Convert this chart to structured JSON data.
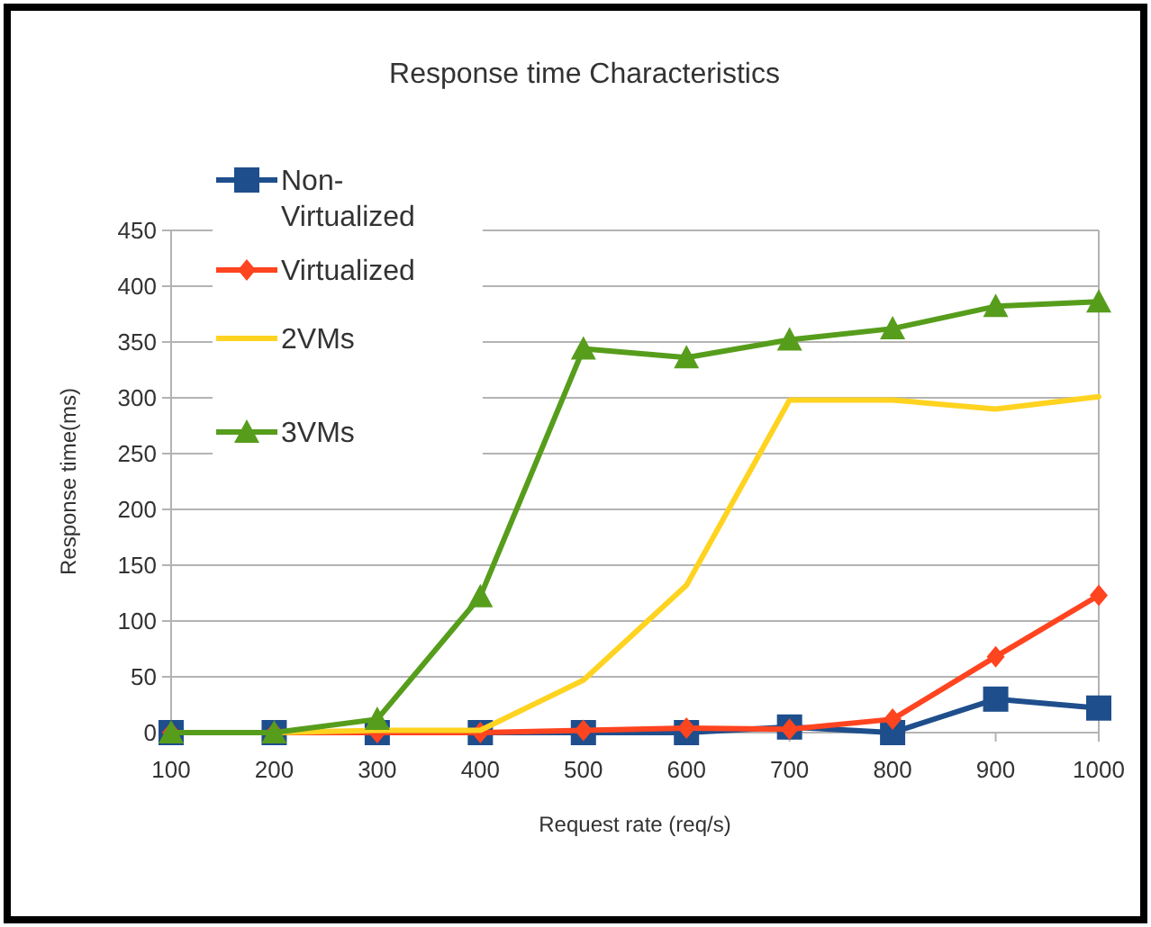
{
  "chart_data": {
    "type": "line",
    "title": "Response time Characteristics",
    "xlabel": "Request rate (req/s)",
    "ylabel": "Response time(ms)",
    "categories": [
      "100",
      "200",
      "300",
      "400",
      "500",
      "600",
      "700",
      "800",
      "900",
      "1000"
    ],
    "ylim": [
      0,
      450
    ],
    "yticks": [
      0,
      50,
      100,
      150,
      200,
      250,
      300,
      350,
      400,
      450
    ],
    "grid": "y",
    "legend": "top left",
    "series": [
      {
        "name": "Non-Virtualized",
        "color": "#1f4e8c",
        "marker": "square",
        "values": [
          0,
          0,
          0,
          0,
          0,
          0,
          5,
          0,
          30,
          22
        ]
      },
      {
        "name": "Virtualized",
        "color": "#ff4420",
        "marker": "diamond",
        "values": [
          0,
          0,
          0,
          0,
          2,
          4,
          3,
          12,
          68,
          123
        ]
      },
      {
        "name": "2VMs",
        "color": "#ffd320",
        "marker": "none",
        "values": [
          0,
          0,
          2,
          2,
          47,
          132,
          298,
          298,
          290,
          301
        ]
      },
      {
        "name": "3VMs",
        "color": "#579d1c",
        "marker": "triangle",
        "values": [
          0,
          0,
          12,
          122,
          344,
          336,
          352,
          362,
          382,
          386
        ]
      }
    ]
  }
}
